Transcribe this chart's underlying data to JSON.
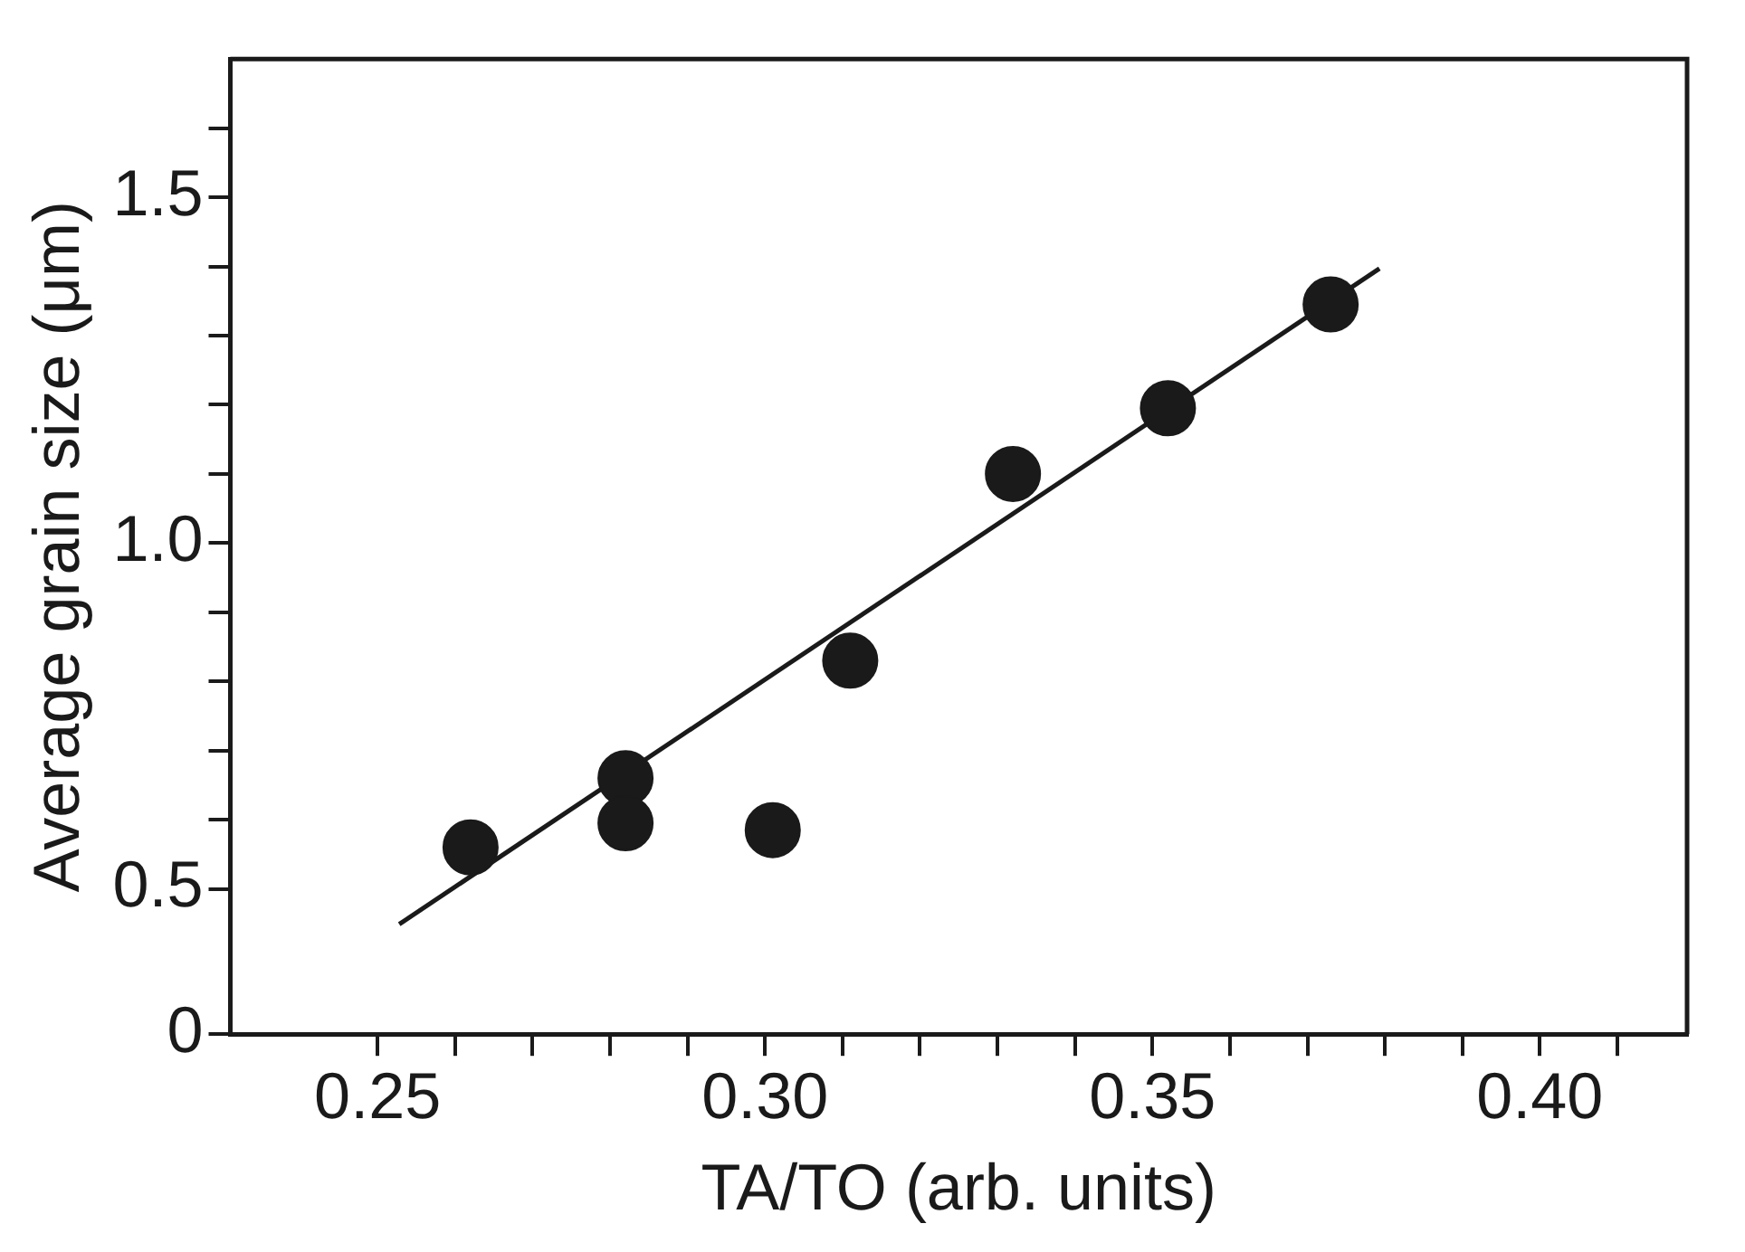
{
  "chart_data": {
    "type": "scatter",
    "xlabel": "TA/TO (arb. units)",
    "ylabel": "Average grain size (μm)",
    "grid": false,
    "xlim": [
      0.231,
      0.419
    ],
    "ylim": [
      0.29,
      1.7
    ],
    "xticks": [
      0.25,
      {
        "value": 0.26,
        "label": null
      },
      {
        "value": 0.27,
        "label": null
      },
      {
        "value": 0.28,
        "label": null
      },
      {
        "value": 0.29,
        "label": null
      },
      {
        "value": 0.3,
        "label": "0.30"
      },
      {
        "value": 0.31,
        "label": null
      },
      {
        "value": 0.32,
        "label": null
      },
      {
        "value": 0.33,
        "label": null
      },
      {
        "value": 0.34,
        "label": null
      },
      0.35,
      {
        "value": 0.36,
        "label": null
      },
      {
        "value": 0.37,
        "label": null
      },
      {
        "value": 0.38,
        "label": null
      },
      {
        "value": 0.39,
        "label": null
      },
      {
        "value": 0.4,
        "label": "0.40"
      },
      {
        "value": 0.41,
        "label": null
      }
    ],
    "yticks": [
      {
        "value": 0.29,
        "label": "0"
      },
      0.5,
      {
        "value": 0.6,
        "label": null
      },
      {
        "value": 0.7,
        "label": null
      },
      {
        "value": 0.8,
        "label": null
      },
      {
        "value": 0.9,
        "label": null
      },
      {
        "value": 1.0,
        "label": "1.0"
      },
      {
        "value": 1.1,
        "label": null
      },
      {
        "value": 1.2,
        "label": null
      },
      {
        "value": 1.3,
        "label": null
      },
      {
        "value": 1.4,
        "label": null
      },
      1.5,
      {
        "value": 1.6,
        "label": null
      }
    ],
    "series": [
      {
        "marker": "circle",
        "color": "#1a1a1a",
        "x": [
          0.262,
          0.282,
          0.282,
          0.301,
          0.311,
          0.332,
          0.352,
          0.373
        ],
        "values": [
          0.56,
          0.66,
          0.595,
          0.585,
          0.83,
          1.1,
          1.195,
          1.345
        ]
      },
      {
        "type": "line",
        "marker": "none",
        "color": "#1a1a1a",
        "x": [
          0.2528,
          0.3793
        ],
        "values": [
          0.449,
          1.397
        ]
      }
    ]
  }
}
